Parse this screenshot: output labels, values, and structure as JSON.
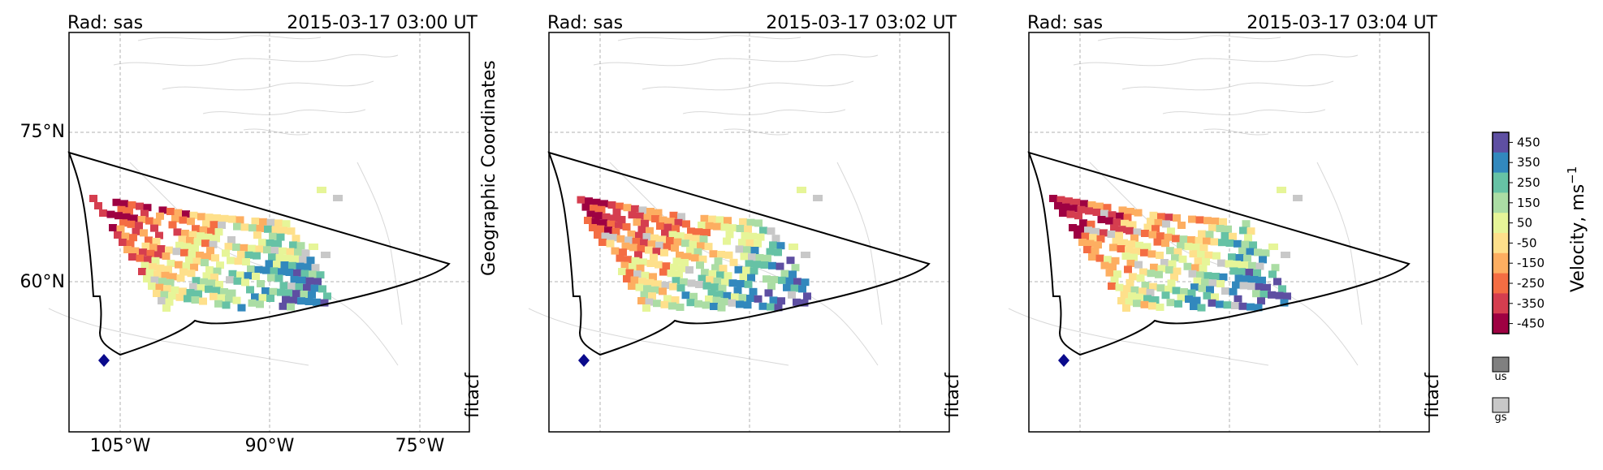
{
  "chart_data": [
    {
      "type": "heatmap",
      "radar_label": "Rad: sas",
      "timestamp": "2015-03-17 03:00 UT",
      "side_label": "fitacf",
      "y_label": "Geographic Coordinates",
      "lat_ticks": [
        "75°N",
        "60°N"
      ],
      "lon_ticks": [
        "105°W",
        "90°W",
        "75°W"
      ]
    },
    {
      "type": "heatmap",
      "radar_label": "Rad: sas",
      "timestamp": "2015-03-17 03:02 UT",
      "side_label": "fitacf"
    },
    {
      "type": "heatmap",
      "radar_label": "Rad: sas",
      "timestamp": "2015-03-17 03:04 UT",
      "side_label": "fitacf"
    }
  ],
  "colorbar": {
    "label": "Velocity, ms",
    "label_sup": "−1",
    "ticks": [
      "450",
      "350",
      "250",
      "150",
      "50",
      "-50",
      "-150",
      "-250",
      "-350",
      "-450"
    ],
    "colors": [
      "#5e4fa2",
      "#3288bd",
      "#66c2a5",
      "#abdda4",
      "#e6f598",
      "#fee08b",
      "#fdae61",
      "#f46d43",
      "#d53e4f",
      "#9e0142"
    ],
    "gs_color": "#c8c8c8",
    "us_color": "#808080",
    "us_label": "us",
    "gs_label": "gs"
  }
}
